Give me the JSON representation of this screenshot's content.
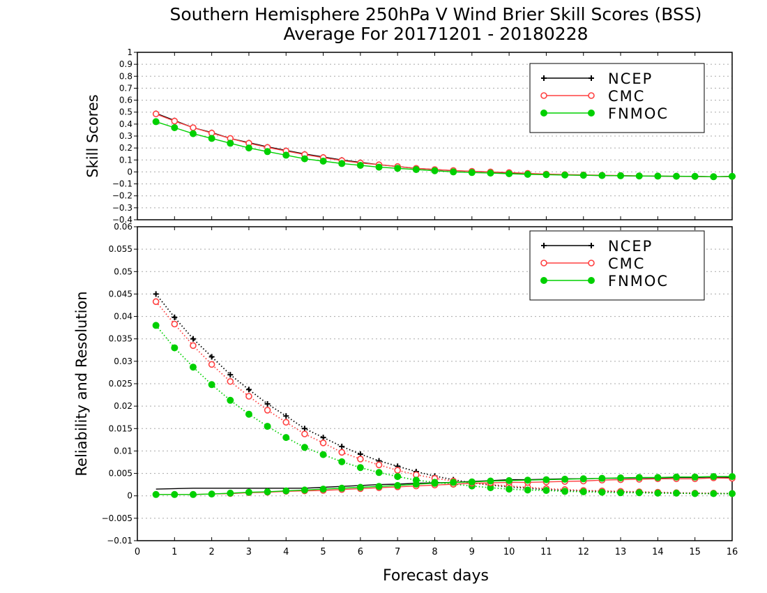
{
  "chart_data": [
    {
      "type": "line",
      "title": "Southern Hemisphere 250hPa V Wind Brier Skill Scores (BSS)",
      "subtitle": "Average For 20171201 - 20180228",
      "ylabel": "Skill Scores",
      "xlabel": "",
      "xlim": [
        0,
        16
      ],
      "ylim": [
        -0.4,
        1
      ],
      "yticks": [
        "1",
        "0.9",
        "0.8",
        "0.7",
        "0.6",
        "0.5",
        "0.4",
        "0.3",
        "0.2",
        "0.1",
        "0",
        "−0.1",
        "−0.2",
        "−0.3",
        "−0.4"
      ],
      "ytick_values": [
        1,
        0.9,
        0.8,
        0.7,
        0.6,
        0.5,
        0.4,
        0.3,
        0.2,
        0.1,
        0,
        -0.1,
        -0.2,
        -0.3,
        -0.4
      ],
      "grid": true,
      "legend": "top-right",
      "x": [
        0.5,
        1,
        1.5,
        2,
        2.5,
        3,
        3.5,
        4,
        4.5,
        5,
        5.5,
        6,
        6.5,
        7,
        7.5,
        8,
        8.5,
        9,
        9.5,
        10,
        10.5,
        11,
        11.5,
        12,
        12.5,
        13,
        13.5,
        14,
        14.5,
        15,
        15.5,
        16
      ],
      "series": [
        {
          "name": "NCEP",
          "color": "#000000",
          "marker": "plus",
          "values": [
            0.49,
            0.43,
            0.37,
            0.33,
            0.28,
            0.245,
            0.21,
            0.18,
            0.15,
            0.125,
            0.1,
            0.08,
            0.06,
            0.045,
            0.03,
            0.02,
            0.01,
            0.005,
            0.0,
            -0.01,
            -0.015,
            -0.02,
            -0.025,
            -0.028,
            -0.03,
            -0.032,
            -0.034,
            -0.035,
            -0.037,
            -0.038,
            -0.04,
            -0.038
          ]
        },
        {
          "name": "CMC",
          "color": "#ff4040",
          "marker": "open-circle",
          "values": [
            0.485,
            0.425,
            0.37,
            0.325,
            0.28,
            0.24,
            0.205,
            0.175,
            0.145,
            0.12,
            0.095,
            0.075,
            0.06,
            0.045,
            0.03,
            0.02,
            0.012,
            0.005,
            0.0,
            -0.005,
            -0.012,
            -0.018,
            -0.022,
            -0.025,
            -0.028,
            -0.03,
            -0.033,
            -0.035,
            -0.036,
            -0.038,
            -0.04,
            -0.038
          ]
        },
        {
          "name": "FNMOC",
          "color": "#00d000",
          "marker": "filled-circle",
          "values": [
            0.42,
            0.37,
            0.32,
            0.28,
            0.24,
            0.2,
            0.17,
            0.14,
            0.11,
            0.09,
            0.07,
            0.055,
            0.04,
            0.03,
            0.02,
            0.01,
            0.0,
            -0.005,
            -0.01,
            -0.015,
            -0.02,
            -0.023,
            -0.026,
            -0.028,
            -0.03,
            -0.032,
            -0.034,
            -0.035,
            -0.036,
            -0.037,
            -0.04,
            -0.037
          ]
        }
      ]
    },
    {
      "type": "line",
      "ylabel": "Reliability and Resolution",
      "xlabel": "Forecast days",
      "xlim": [
        0,
        16
      ],
      "ylim": [
        -0.01,
        0.06
      ],
      "xticks": [
        "0",
        "1",
        "2",
        "3",
        "4",
        "5",
        "6",
        "7",
        "8",
        "9",
        "10",
        "11",
        "12",
        "13",
        "14",
        "15",
        "16"
      ],
      "yticks": [
        "0.06",
        "0.055",
        "0.05",
        "0.045",
        "0.04",
        "0.035",
        "0.03",
        "0.025",
        "0.02",
        "0.015",
        "0.01",
        "0.005",
        "0",
        "−0.005",
        "−0.01"
      ],
      "ytick_values": [
        0.06,
        0.055,
        0.05,
        0.045,
        0.04,
        0.035,
        0.03,
        0.025,
        0.02,
        0.015,
        0.01,
        0.005,
        0,
        -0.005,
        -0.01
      ],
      "grid": true,
      "legend": "top-right",
      "x": [
        0.5,
        1,
        1.5,
        2,
        2.5,
        3,
        3.5,
        4,
        4.5,
        5,
        5.5,
        6,
        6.5,
        7,
        7.5,
        8,
        8.5,
        9,
        9.5,
        10,
        10.5,
        11,
        11.5,
        12,
        12.5,
        13,
        13.5,
        14,
        14.5,
        15,
        15.5,
        16
      ],
      "series": [
        {
          "name": "NCEP",
          "color": "#000000",
          "marker": "plus",
          "style": "dotted",
          "values": [
            0.045,
            0.0398,
            0.035,
            0.031,
            0.027,
            0.0237,
            0.0205,
            0.0178,
            0.015,
            0.013,
            0.011,
            0.0093,
            0.0078,
            0.0066,
            0.0054,
            0.0044,
            0.0036,
            0.0029,
            0.0024,
            0.002,
            0.0017,
            0.0014,
            0.0012,
            0.0011,
            0.001,
            0.0009,
            0.0008,
            0.0007,
            0.0006,
            0.0006,
            0.0005,
            0.0005
          ]
        },
        {
          "name": "CMC",
          "color": "#ff4040",
          "marker": "open-circle",
          "style": "dotted",
          "values": [
            0.0433,
            0.0383,
            0.0335,
            0.0293,
            0.0255,
            0.0222,
            0.0191,
            0.0164,
            0.0138,
            0.0118,
            0.0097,
            0.0082,
            0.0069,
            0.0057,
            0.0047,
            0.0039,
            0.0033,
            0.0029,
            0.0025,
            0.0022,
            0.0019,
            0.0016,
            0.0014,
            0.0012,
            0.0011,
            0.001,
            0.0009,
            0.0008,
            0.0007,
            0.0006,
            0.0006,
            0.0005
          ]
        },
        {
          "name": "FNMOC",
          "color": "#00d000",
          "marker": "filled-circle",
          "style": "dotted",
          "values": [
            0.038,
            0.033,
            0.0287,
            0.0248,
            0.0213,
            0.0182,
            0.0155,
            0.013,
            0.0108,
            0.0092,
            0.0076,
            0.0063,
            0.0052,
            0.0043,
            0.0035,
            0.003,
            0.0026,
            0.0022,
            0.0018,
            0.0015,
            0.0013,
            0.0012,
            0.001,
            0.0009,
            0.0008,
            0.0007,
            0.0007,
            0.0006,
            0.0006,
            0.0005,
            0.0005,
            0.0005
          ]
        },
        {
          "name": "NCEP",
          "color": "#000000",
          "marker": "none",
          "style": "solid",
          "values": [
            0.0015,
            0.0016,
            0.0017,
            0.0017,
            0.0017,
            0.0017,
            0.0017,
            0.0017,
            0.0017,
            0.0019,
            0.0021,
            0.0023,
            0.0025,
            0.0026,
            0.0028,
            0.0029,
            0.003,
            0.0032,
            0.0034,
            0.0036,
            0.0036,
            0.0037,
            0.0038,
            0.0038,
            0.0039,
            0.0039,
            0.004,
            0.004,
            0.0041,
            0.0041,
            0.0042,
            0.0041
          ]
        },
        {
          "name": "CMC",
          "color": "#ff4040",
          "marker": "open-circle",
          "style": "solid",
          "values": [
            0.0003,
            0.0003,
            0.0003,
            0.0004,
            0.0005,
            0.0007,
            0.0008,
            0.001,
            0.0011,
            0.0012,
            0.0014,
            0.0016,
            0.0018,
            0.002,
            0.0022,
            0.0024,
            0.0026,
            0.0028,
            0.0029,
            0.003,
            0.003,
            0.0031,
            0.0032,
            0.0033,
            0.0035,
            0.0036,
            0.0037,
            0.0038,
            0.0038,
            0.0038,
            0.004,
            0.0039
          ]
        },
        {
          "name": "FNMOC",
          "color": "#00d000",
          "marker": "filled-circle",
          "style": "solid",
          "values": [
            0.0003,
            0.0003,
            0.0003,
            0.0004,
            0.0006,
            0.0008,
            0.0009,
            0.0011,
            0.0013,
            0.0015,
            0.0017,
            0.0019,
            0.0021,
            0.0023,
            0.0026,
            0.0028,
            0.003,
            0.0031,
            0.0033,
            0.0034,
            0.0035,
            0.0036,
            0.0037,
            0.0038,
            0.0039,
            0.004,
            0.0041,
            0.0041,
            0.0042,
            0.0042,
            0.0043,
            0.0043
          ]
        }
      ]
    }
  ]
}
